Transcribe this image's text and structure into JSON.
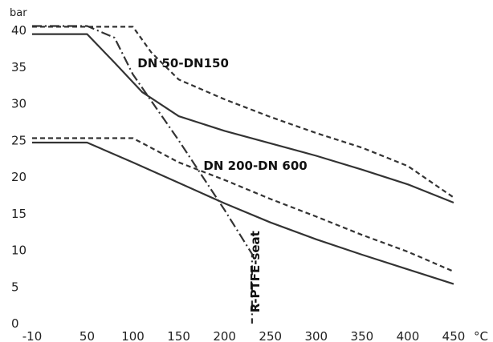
{
  "chart_data": {
    "type": "line",
    "title": "",
    "xlabel": "",
    "ylabel": "",
    "y_unit": "bar",
    "x_unit": "°C",
    "xlim": [
      -10,
      450
    ],
    "ylim": [
      0,
      41
    ],
    "x_ticks": [
      "-10",
      "50",
      "100",
      "150",
      "200",
      "250",
      "300",
      "350",
      "400",
      "450"
    ],
    "y_ticks": [
      "0",
      "5",
      "10",
      "15",
      "20",
      "25",
      "30",
      "35",
      "40"
    ],
    "grid": false,
    "legend": "none",
    "series": [
      {
        "style": "solid",
        "points": [
          [
            -10,
            39.5
          ],
          [
            50,
            39.5
          ],
          [
            80,
            35.6
          ],
          [
            110,
            31.6
          ],
          [
            150,
            28.3
          ],
          [
            200,
            26.3
          ],
          [
            250,
            24.6
          ],
          [
            300,
            22.9
          ],
          [
            350,
            21.0
          ],
          [
            400,
            19.0
          ],
          [
            450,
            16.5
          ]
        ]
      },
      {
        "style": "dashed",
        "points": [
          [
            -10,
            40.5
          ],
          [
            100,
            40.5
          ],
          [
            120,
            37
          ],
          [
            150,
            33.3
          ],
          [
            200,
            30.6
          ],
          [
            250,
            28.2
          ],
          [
            300,
            26.0
          ],
          [
            350,
            24.0
          ],
          [
            400,
            21.5
          ],
          [
            450,
            17.2
          ]
        ]
      },
      {
        "style": "solid",
        "points": [
          [
            -10,
            24.7
          ],
          [
            50,
            24.7
          ],
          [
            100,
            22.0
          ],
          [
            150,
            19.2
          ],
          [
            200,
            16.4
          ],
          [
            250,
            13.8
          ],
          [
            300,
            11.5
          ],
          [
            350,
            9.4
          ],
          [
            400,
            7.4
          ],
          [
            450,
            5.4
          ]
        ]
      },
      {
        "style": "dashed",
        "points": [
          [
            -10,
            25.3
          ],
          [
            100,
            25.3
          ],
          [
            150,
            22.0
          ],
          [
            200,
            19.6
          ],
          [
            250,
            17.0
          ],
          [
            300,
            14.6
          ],
          [
            350,
            12.1
          ],
          [
            400,
            9.8
          ],
          [
            450,
            7.1
          ]
        ]
      },
      {
        "style": "dash-dot",
        "points": [
          [
            -10,
            40.6
          ],
          [
            50,
            40.6
          ],
          [
            80,
            39.0
          ],
          [
            100,
            34.0
          ],
          [
            150,
            25.0
          ],
          [
            200,
            15.5
          ],
          [
            230,
            9.5
          ],
          [
            230,
            0
          ]
        ]
      }
    ],
    "annotations": [
      {
        "text": "DN 50-DN150",
        "x": 105,
        "y": 35
      },
      {
        "text": "DN 200-DN 600",
        "x": 177,
        "y": 21
      },
      {
        "text": "R-PTFE-seat",
        "x": 238,
        "y": 1.5,
        "rotation": -90
      }
    ]
  }
}
